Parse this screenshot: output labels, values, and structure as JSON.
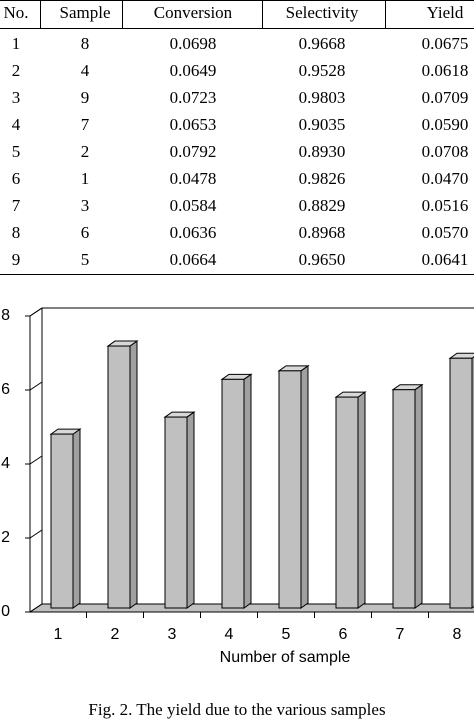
{
  "table": {
    "header": [
      "No.",
      "Sample",
      "Conversion",
      "Selectivity",
      "Yield"
    ],
    "rows": [
      [
        "1",
        "8",
        "0.0698",
        "0.9668",
        "0.0675"
      ],
      [
        "2",
        "4",
        "0.0649",
        "0.9528",
        "0.0618"
      ],
      [
        "3",
        "9",
        "0.0723",
        "0.9803",
        "0.0709"
      ],
      [
        "4",
        "7",
        "0.0653",
        "0.9035",
        "0.0590"
      ],
      [
        "5",
        "2",
        "0.0792",
        "0.8930",
        "0.0708"
      ],
      [
        "6",
        "1",
        "0.0478",
        "0.9826",
        "0.0470"
      ],
      [
        "7",
        "3",
        "0.0584",
        "0.8829",
        "0.0516"
      ],
      [
        "8",
        "6",
        "0.0636",
        "0.8968",
        "0.0570"
      ],
      [
        "9",
        "5",
        "0.0664",
        "0.9650",
        "0.0641"
      ]
    ]
  },
  "chart_data": {
    "type": "bar3d",
    "x_label": "Number of sample",
    "categories": [
      "1",
      "2",
      "3",
      "4",
      "5",
      "6",
      "7",
      "8"
    ],
    "values": [
      4.7,
      7.08,
      5.16,
      6.18,
      6.41,
      5.7,
      5.9,
      6.75
    ],
    "color": "#c0c0c0",
    "ylim": [
      0,
      8
    ],
    "yticks": [
      0,
      2,
      4,
      6,
      8
    ]
  },
  "caption": "Fig. 2. The yield due to the various samples"
}
